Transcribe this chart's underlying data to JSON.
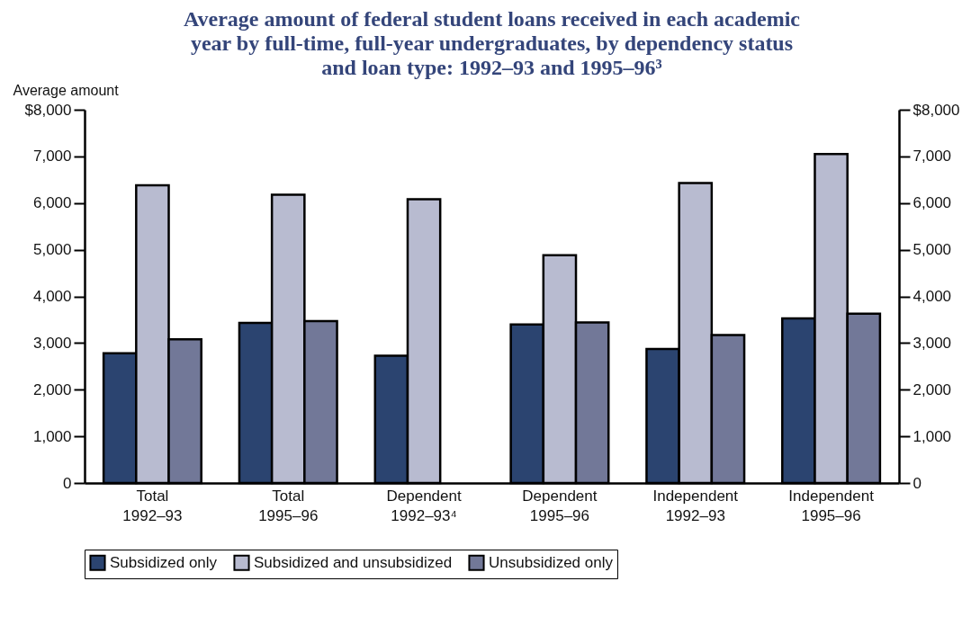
{
  "chart_data": {
    "type": "bar",
    "title": "Average amount of federal student loans received in each academic\nyear by full-time, full-year undergraduates, by dependency status\nand loan type: 1992–93 and 1995–96³",
    "ylabel": "Average amount",
    "categories": [
      "Total\n1992–93",
      "Total\n1995–96",
      "Dependent\n1992–93⁴",
      "Dependent\n1995–96",
      "Independent\n1992–93",
      "Independent\n1995–96"
    ],
    "series": [
      {
        "name": "Subsidized only",
        "color": "#2b4470",
        "values": [
          2780,
          3430,
          2730,
          3400,
          2870,
          3530
        ]
      },
      {
        "name": "Subsidized and unsubsidized",
        "color": "#b8bbd0",
        "values": [
          6380,
          6180,
          6080,
          4880,
          6430,
          7050
        ]
      },
      {
        "name": "Unsubsidized only",
        "color": "#727898",
        "values": [
          3080,
          3470,
          null,
          3440,
          3170,
          3630
        ]
      }
    ],
    "ylim": [
      0,
      8000
    ],
    "yticks": [
      0,
      {
        "value": 1000,
        "label": "1,000"
      },
      {
        "value": 2000,
        "label": "2,000"
      },
      {
        "value": 3000,
        "label": "3,000"
      },
      {
        "value": 4000,
        "label": "4,000"
      },
      {
        "value": 5000,
        "label": "5,000"
      },
      {
        "value": 6000,
        "label": "6,000"
      },
      {
        "value": 7000,
        "label": "7,000"
      },
      {
        "value": 8000,
        "label": "$8,000"
      }
    ],
    "y2lim": [
      0,
      8000
    ],
    "y2ticks": [
      0,
      {
        "value": 1000,
        "label": "1,000"
      },
      {
        "value": 2000,
        "label": "2,000"
      },
      {
        "value": 3000,
        "label": "3,000"
      },
      {
        "value": 4000,
        "label": "4,000"
      },
      {
        "value": 5000,
        "label": "5,000"
      },
      {
        "value": 6000,
        "label": "6,000"
      },
      {
        "value": 7000,
        "label": "7,000"
      },
      {
        "value": 8000,
        "label": "$8,000"
      }
    ],
    "grid": false,
    "legend": "bottom"
  }
}
